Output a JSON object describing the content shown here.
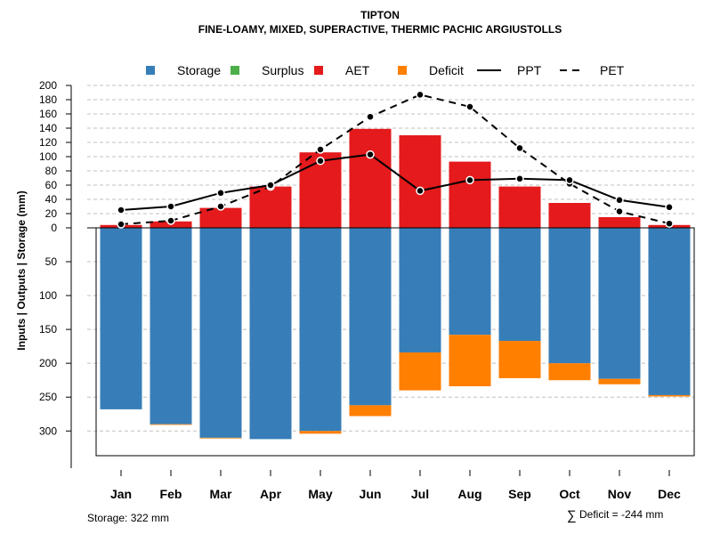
{
  "chart_data": {
    "type": "bar",
    "title": "TIPTON",
    "subtitle": "FINE-LOAMY, MIXED, SUPERACTIVE, THERMIC PACHIC ARGIUSTOLLS",
    "ylabel": "Inputs | Outputs | Storage     (mm)",
    "ylim_upper": [
      0,
      200
    ],
    "ylim_lower": [
      0,
      322
    ],
    "upper_ticks": [
      0,
      20,
      40,
      60,
      80,
      100,
      120,
      140,
      160,
      180,
      200
    ],
    "lower_ticks": [
      50,
      100,
      150,
      200,
      250,
      300
    ],
    "categories": [
      "Jan",
      "Feb",
      "Mar",
      "Apr",
      "May",
      "Jun",
      "Jul",
      "Aug",
      "Sep",
      "Oct",
      "Nov",
      "Dec"
    ],
    "legend": [
      {
        "label": "Storage",
        "kind": "square",
        "color": "#377EB8"
      },
      {
        "label": "Surplus",
        "kind": "square",
        "color": "#4DAF4A"
      },
      {
        "label": "AET",
        "kind": "square",
        "color": "#E41A1C"
      },
      {
        "label": "Deficit",
        "kind": "square",
        "color": "#FF7F00"
      },
      {
        "label": "PPT",
        "kind": "line",
        "dash": "none"
      },
      {
        "label": "PET",
        "kind": "line",
        "dash": "dashed"
      }
    ],
    "series": [
      {
        "name": "AET",
        "color": "#E41A1C",
        "values": [
          4,
          9,
          28,
          58,
          106,
          139,
          130,
          93,
          58,
          35,
          15,
          4
        ]
      },
      {
        "name": "Storage",
        "color": "#377EB8",
        "values": [
          268,
          290,
          310,
          312,
          300,
          262,
          184,
          158,
          167,
          200,
          223,
          247
        ]
      },
      {
        "name": "Deficit",
        "color": "#FF7F00",
        "values": [
          0,
          1,
          1,
          0,
          4,
          16,
          56,
          76,
          55,
          25,
          8,
          2
        ]
      },
      {
        "name": "PPT",
        "values": [
          25,
          30,
          49,
          60,
          94,
          103,
          52,
          67,
          69,
          67,
          39,
          29
        ]
      },
      {
        "name": "PET",
        "values": [
          5,
          10,
          30,
          58,
          110,
          156,
          187,
          170,
          112,
          62,
          23,
          6
        ]
      }
    ]
  },
  "footer": {
    "storage": "Storage: 322 mm",
    "deficit_symbol": "∑",
    "deficit": "Deficit = -244 mm"
  }
}
